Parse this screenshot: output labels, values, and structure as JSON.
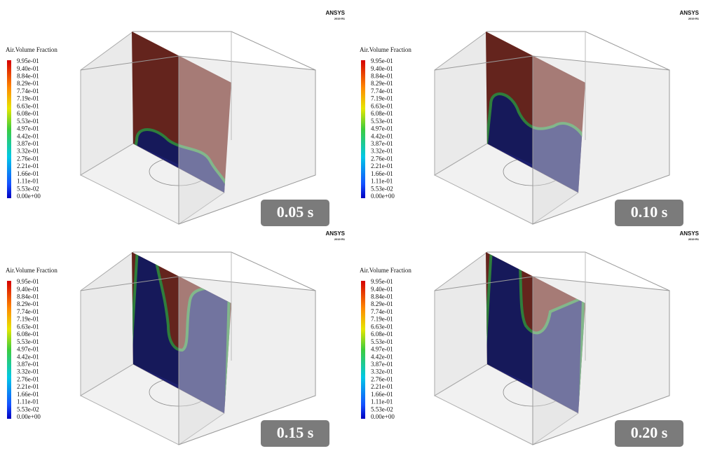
{
  "legend": {
    "title": "Air.Volume Fraction",
    "labels": [
      "9.95e-01",
      "9.40e-01",
      "8.84e-01",
      "8.29e-01",
      "7.74e-01",
      "7.19e-01",
      "6.63e-01",
      "6.08e-01",
      "5.53e-01",
      "4.97e-01",
      "4.42e-01",
      "3.87e-01",
      "3.32e-01",
      "2.76e-01",
      "2.21e-01",
      "1.66e-01",
      "1.11e-01",
      "5.53e-02",
      "0.00e+00"
    ]
  },
  "logo": {
    "name": "ANSYS",
    "version": "2019 R1"
  },
  "panels": [
    {
      "time": "0.05 s"
    },
    {
      "time": "0.10 s"
    },
    {
      "time": "0.15 s"
    },
    {
      "time": "0.20 s"
    }
  ]
}
